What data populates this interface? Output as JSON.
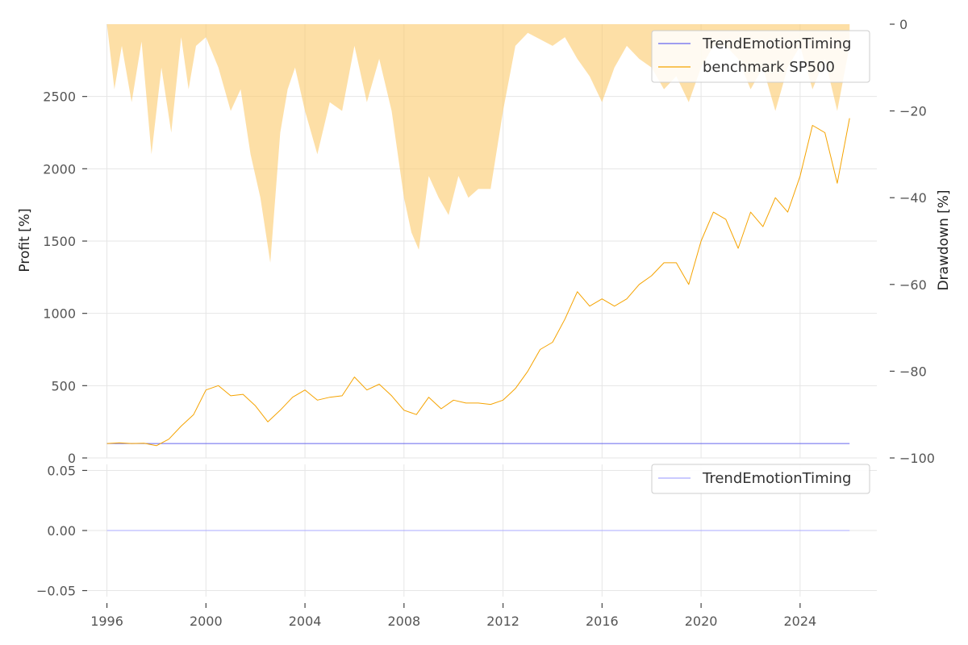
{
  "chart_data": [
    {
      "panel": "main",
      "type": "line",
      "ylabel": "Profit [%]",
      "ylabel_right": "Drawdown [%]",
      "ylim": [
        0,
        3000
      ],
      "ylim_right": [
        -100,
        0
      ],
      "xlim": [
        1995.2,
        2027.1
      ],
      "grid": true,
      "legend_position": "top-right",
      "y_ticks": [
        0,
        500,
        1000,
        1500,
        2000,
        2500
      ],
      "y_ticks_right": [
        0,
        -20,
        -40,
        -60,
        -80,
        -100
      ],
      "series": [
        {
          "name": "TrendEmotionTiming",
          "color": "#6666ee",
          "points": [
            [
              1996.0,
              100
            ],
            [
              2026.0,
              100
            ]
          ]
        },
        {
          "name": "benchmark SP500",
          "color": "#f5a300",
          "points": [
            [
              1996.0,
              100
            ],
            [
              1996.5,
              105
            ],
            [
              1997.0,
              100
            ],
            [
              1997.5,
              102
            ],
            [
              1998.0,
              85
            ],
            [
              1998.5,
              130
            ],
            [
              1999.0,
              220
            ],
            [
              1999.5,
              300
            ],
            [
              2000.0,
              470
            ],
            [
              2000.5,
              500
            ],
            [
              2001.0,
              430
            ],
            [
              2001.5,
              440
            ],
            [
              2002.0,
              360
            ],
            [
              2002.5,
              250
            ],
            [
              2003.0,
              330
            ],
            [
              2003.5,
              420
            ],
            [
              2004.0,
              470
            ],
            [
              2004.5,
              400
            ],
            [
              2005.0,
              420
            ],
            [
              2005.5,
              430
            ],
            [
              2006.0,
              560
            ],
            [
              2006.5,
              470
            ],
            [
              2007.0,
              510
            ],
            [
              2007.5,
              430
            ],
            [
              2008.0,
              330
            ],
            [
              2008.5,
              300
            ],
            [
              2009.0,
              420
            ],
            [
              2009.5,
              340
            ],
            [
              2010.0,
              400
            ],
            [
              2010.5,
              380
            ],
            [
              2011.0,
              380
            ],
            [
              2011.5,
              370
            ],
            [
              2012.0,
              400
            ],
            [
              2012.5,
              480
            ],
            [
              2013.0,
              600
            ],
            [
              2013.5,
              750
            ],
            [
              2014.0,
              800
            ],
            [
              2014.5,
              960
            ],
            [
              2015.0,
              1150
            ],
            [
              2015.5,
              1050
            ],
            [
              2016.0,
              1100
            ],
            [
              2016.5,
              1050
            ],
            [
              2017.0,
              1100
            ],
            [
              2017.5,
              1200
            ],
            [
              2018.0,
              1260
            ],
            [
              2018.5,
              1350
            ],
            [
              2019.0,
              1350
            ],
            [
              2019.5,
              1200
            ],
            [
              2020.0,
              1500
            ],
            [
              2020.5,
              1700
            ],
            [
              2021.0,
              1650
            ],
            [
              2021.5,
              1450
            ],
            [
              2022.0,
              1700
            ],
            [
              2022.5,
              1600
            ],
            [
              2023.0,
              1800
            ],
            [
              2023.5,
              1700
            ],
            [
              2024.0,
              1950
            ],
            [
              2024.5,
              2300
            ],
            [
              2025.0,
              2250
            ],
            [
              2025.5,
              1900
            ],
            [
              2026.0,
              2350
            ]
          ]
        },
        {
          "name": "drawdown",
          "color": "#fcc96a",
          "axis": "right",
          "type": "area",
          "points": [
            [
              1996.0,
              0
            ],
            [
              1996.3,
              -15
            ],
            [
              1996.6,
              -5
            ],
            [
              1997.0,
              -18
            ],
            [
              1997.4,
              -4
            ],
            [
              1997.8,
              -30
            ],
            [
              1998.2,
              -10
            ],
            [
              1998.6,
              -25
            ],
            [
              1999.0,
              -3
            ],
            [
              1999.3,
              -15
            ],
            [
              1999.6,
              -5
            ],
            [
              2000.0,
              -3
            ],
            [
              2000.5,
              -10
            ],
            [
              2001.0,
              -20
            ],
            [
              2001.4,
              -15
            ],
            [
              2001.8,
              -30
            ],
            [
              2002.2,
              -40
            ],
            [
              2002.6,
              -55
            ],
            [
              2003.0,
              -25
            ],
            [
              2003.3,
              -15
            ],
            [
              2003.6,
              -10
            ],
            [
              2004.0,
              -20
            ],
            [
              2004.5,
              -30
            ],
            [
              2005.0,
              -18
            ],
            [
              2005.5,
              -20
            ],
            [
              2006.0,
              -5
            ],
            [
              2006.5,
              -18
            ],
            [
              2007.0,
              -8
            ],
            [
              2007.5,
              -20
            ],
            [
              2008.0,
              -40
            ],
            [
              2008.3,
              -48
            ],
            [
              2008.6,
              -52
            ],
            [
              2009.0,
              -35
            ],
            [
              2009.4,
              -40
            ],
            [
              2009.8,
              -44
            ],
            [
              2010.2,
              -35
            ],
            [
              2010.6,
              -40
            ],
            [
              2011.0,
              -38
            ],
            [
              2011.5,
              -38
            ],
            [
              2012.0,
              -20
            ],
            [
              2012.5,
              -5
            ],
            [
              2013.0,
              -2
            ],
            [
              2014.0,
              -5
            ],
            [
              2014.5,
              -3
            ],
            [
              2015.0,
              -8
            ],
            [
              2015.5,
              -12
            ],
            [
              2016.0,
              -18
            ],
            [
              2016.5,
              -10
            ],
            [
              2017.0,
              -5
            ],
            [
              2017.5,
              -8
            ],
            [
              2018.0,
              -10
            ],
            [
              2018.5,
              -15
            ],
            [
              2019.0,
              -12
            ],
            [
              2019.5,
              -18
            ],
            [
              2020.0,
              -10
            ],
            [
              2020.5,
              -5
            ],
            [
              2021.0,
              -5
            ],
            [
              2021.5,
              -8
            ],
            [
              2022.0,
              -15
            ],
            [
              2022.5,
              -10
            ],
            [
              2023.0,
              -20
            ],
            [
              2023.5,
              -10
            ],
            [
              2024.0,
              -5
            ],
            [
              2024.5,
              -15
            ],
            [
              2025.0,
              -8
            ],
            [
              2025.5,
              -20
            ],
            [
              2026.0,
              -5
            ]
          ]
        }
      ]
    },
    {
      "panel": "bottom",
      "type": "line",
      "ylim": [
        -0.055,
        0.055
      ],
      "y_ticks": [
        0.05,
        0.0,
        -0.05
      ],
      "y_tick_labels": [
        "0.05",
        "0.00",
        "−0.05"
      ],
      "x_ticks": [
        1996,
        2000,
        2004,
        2008,
        2012,
        2016,
        2020,
        2024
      ],
      "grid": true,
      "legend_position": "top-right",
      "series": [
        {
          "name": "TrendEmotionTiming",
          "color": "#aaaaff",
          "points": [
            [
              1996.0,
              0
            ],
            [
              2026.0,
              0
            ]
          ]
        }
      ]
    }
  ]
}
